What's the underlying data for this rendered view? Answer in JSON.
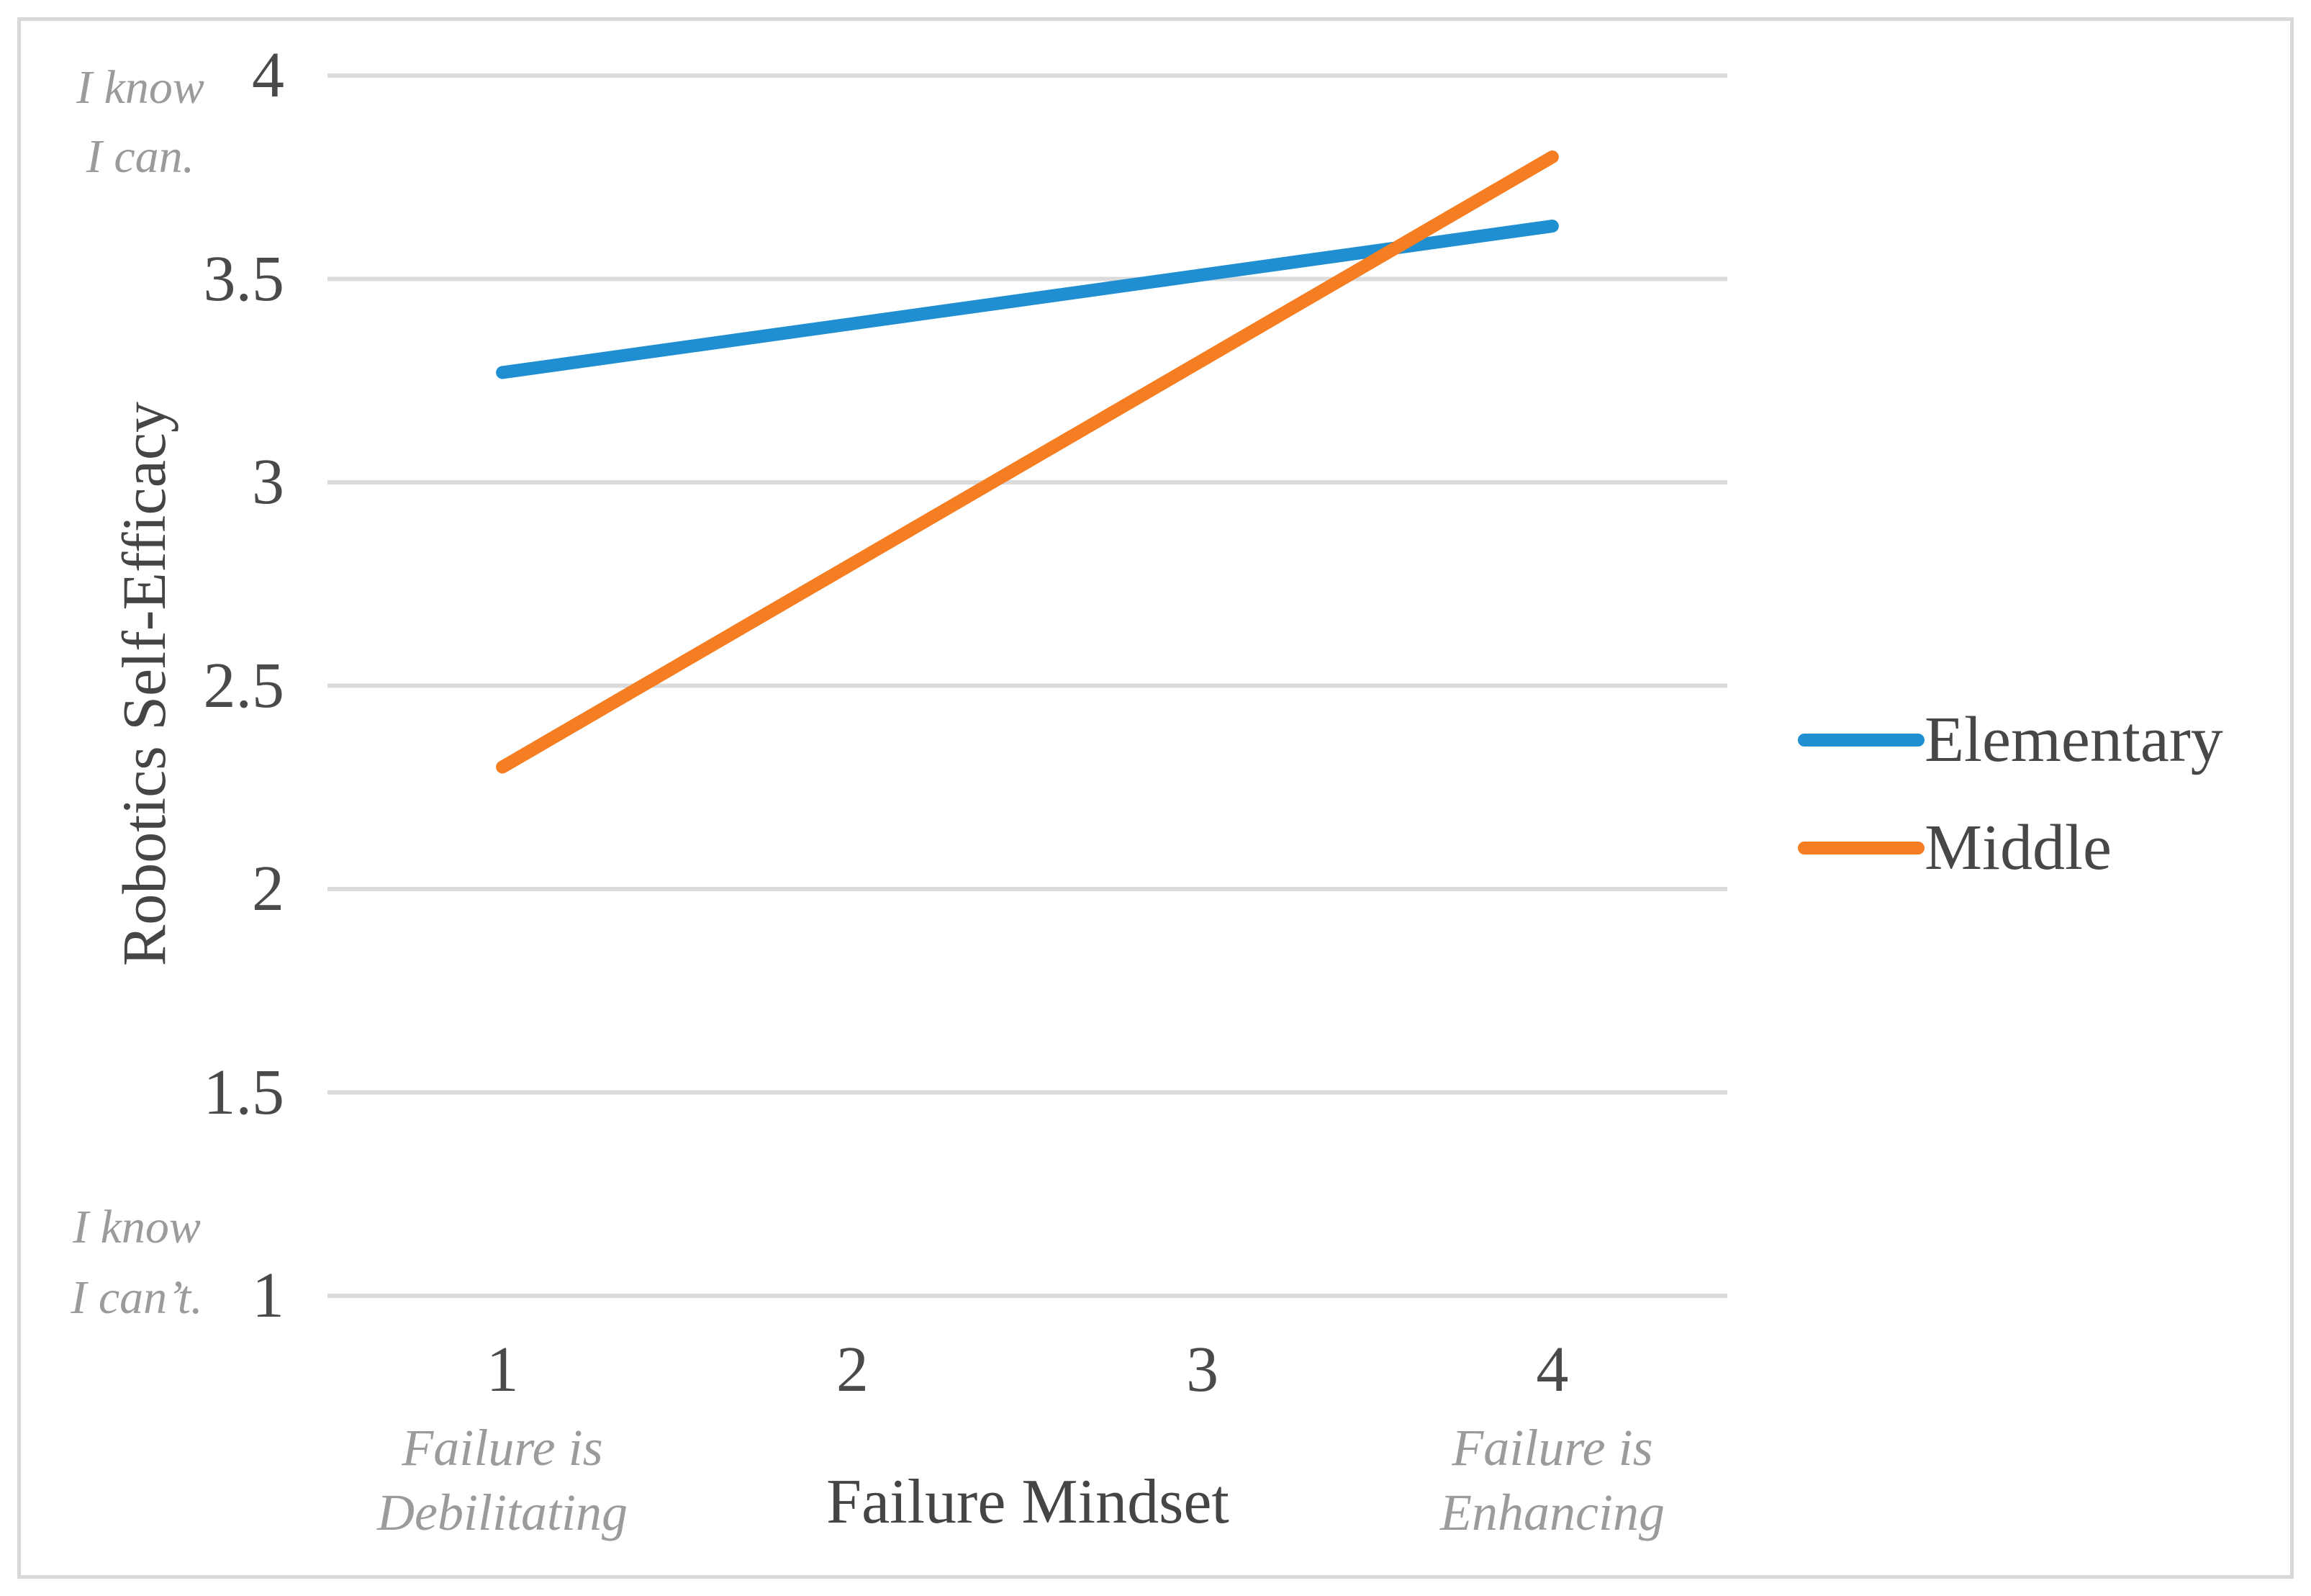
{
  "colors": {
    "elementary_blue": "#1F8FD1",
    "middle_orange": "#F57E22",
    "gridline": "#DBDBDB",
    "frame_border": "#D8D8D8",
    "tick_text": "#4A4A4A",
    "axis_title_text": "#454545",
    "legend_text": "#474747",
    "annotation_text": "#9B9B9B"
  },
  "chart_data": {
    "type": "line",
    "title": "",
    "xlabel": "Failure Mindset",
    "ylabel": "Robotics Self-Efficacy",
    "x_tick_labels": [
      "1",
      "2",
      "3",
      "4"
    ],
    "y_ticks": [
      4,
      3.5,
      3,
      2.5,
      2,
      1.5,
      1
    ],
    "y_tick_labels": [
      "4",
      "3.5",
      "3",
      "2.5",
      "2",
      "1.5",
      "1"
    ],
    "ylim": [
      1,
      4
    ],
    "grid": "horizontal-only",
    "legend_position": "center-right",
    "series": [
      {
        "name": "Elementary",
        "color": "#1F8FD1",
        "points": [
          {
            "x": 1,
            "y": 3.27
          },
          {
            "x": 4,
            "y": 3.63
          }
        ]
      },
      {
        "name": "Middle",
        "color": "#F57E22",
        "points": [
          {
            "x": 1,
            "y": 2.3
          },
          {
            "x": 4,
            "y": 3.8
          }
        ]
      }
    ],
    "annotations": {
      "y_axis_top": [
        "I know",
        "I can."
      ],
      "y_axis_bottom": [
        "I know",
        "I can’t."
      ],
      "x_axis_left": [
        "Failure is",
        "Debilitating"
      ],
      "x_axis_right": [
        "Failure is",
        "Enhancing"
      ]
    }
  }
}
